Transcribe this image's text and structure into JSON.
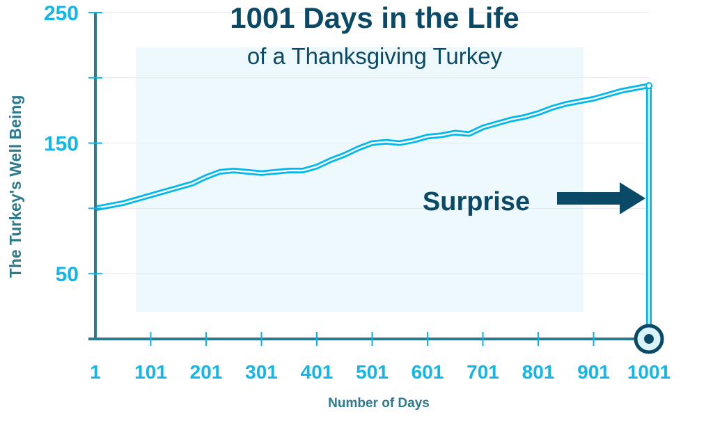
{
  "chart_data": {
    "type": "line",
    "title": "1001 Days in the Life",
    "subtitle": "of a Thanksgiving Turkey",
    "xlabel": "Number of Days",
    "ylabel": "The Turkey's Well Being",
    "xlim": [
      1,
      1001
    ],
    "ylim": [
      0,
      250
    ],
    "x_ticks": [
      1,
      101,
      201,
      301,
      401,
      501,
      601,
      701,
      801,
      901,
      1001
    ],
    "y_ticks": [
      0,
      50,
      100,
      150,
      200,
      250
    ],
    "y_tick_labels": [
      "50",
      "150",
      "250"
    ],
    "y_labeled_values": [
      50,
      150,
      250
    ],
    "grid": true,
    "annotation": "Surprise",
    "series": [
      {
        "name": "Well Being",
        "x": [
          1,
          26,
          51,
          76,
          101,
          126,
          151,
          176,
          201,
          226,
          251,
          276,
          301,
          326,
          351,
          376,
          401,
          426,
          451,
          476,
          501,
          526,
          551,
          576,
          601,
          626,
          651,
          676,
          701,
          726,
          751,
          776,
          801,
          826,
          851,
          876,
          901,
          926,
          951,
          976,
          1001,
          1001
        ],
        "y": [
          100,
          102,
          104,
          107,
          110,
          113,
          116,
          119,
          124,
          128,
          129,
          128,
          127,
          128,
          129,
          129,
          132,
          137,
          141,
          146,
          150,
          151,
          150,
          152,
          155,
          156,
          158,
          157,
          162,
          165,
          168,
          170,
          173,
          177,
          180,
          182,
          184,
          187,
          190,
          192,
          194,
          0
        ]
      }
    ],
    "colors": {
      "line": "#00b8ec",
      "axis": "#2b7a8e",
      "title": "#0b4a66",
      "shade": "#eef9fd",
      "grid": "#e6e6e6"
    }
  }
}
